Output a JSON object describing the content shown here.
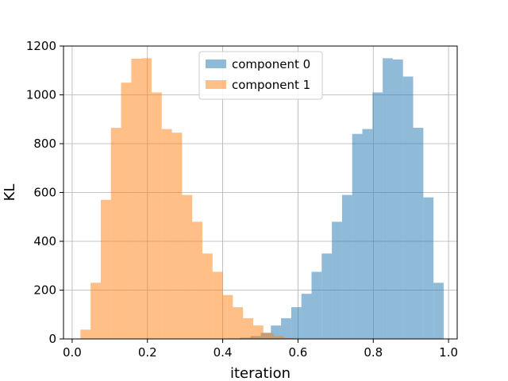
{
  "chart_data": {
    "type": "bar",
    "title": "",
    "xlabel": "iteration",
    "ylabel": "KL",
    "xlim": [
      -0.023,
      1.023
    ],
    "ylim": [
      0,
      1200
    ],
    "x_ticks": [
      "0.0",
      "0.2",
      "0.4",
      "0.6",
      "0.8",
      "1.0"
    ],
    "y_ticks": [
      "0",
      "200",
      "400",
      "600",
      "800",
      "1000",
      "1200"
    ],
    "grid": true,
    "legend_position": "top-center",
    "series": [
      {
        "name": "component 0",
        "color": "#1f77b4",
        "alpha": 0.5,
        "bin_edges": [
          0.42,
          0.447,
          0.474,
          0.501,
          0.528,
          0.555,
          0.582,
          0.609,
          0.636,
          0.663,
          0.69,
          0.717,
          0.744,
          0.771,
          0.798,
          0.825,
          0.852,
          0.879,
          0.906,
          0.933,
          0.96,
          0.987
        ],
        "counts": [
          2,
          5,
          12,
          25,
          55,
          85,
          130,
          185,
          275,
          350,
          480,
          590,
          840,
          860,
          1010,
          1150,
          1145,
          1075,
          865,
          580,
          230,
          38
        ]
      },
      {
        "name": "component 1",
        "color": "#ff7f0e",
        "alpha": 0.5,
        "bin_edges": [
          0.022,
          0.049,
          0.076,
          0.103,
          0.13,
          0.157,
          0.184,
          0.211,
          0.238,
          0.265,
          0.292,
          0.319,
          0.346,
          0.373,
          0.4,
          0.427,
          0.454,
          0.481,
          0.508,
          0.535,
          0.562,
          0.589
        ],
        "counts": [
          38,
          230,
          570,
          865,
          1050,
          1148,
          1150,
          1010,
          860,
          845,
          590,
          480,
          350,
          275,
          180,
          130,
          85,
          55,
          25,
          12,
          4,
          1
        ]
      }
    ]
  }
}
